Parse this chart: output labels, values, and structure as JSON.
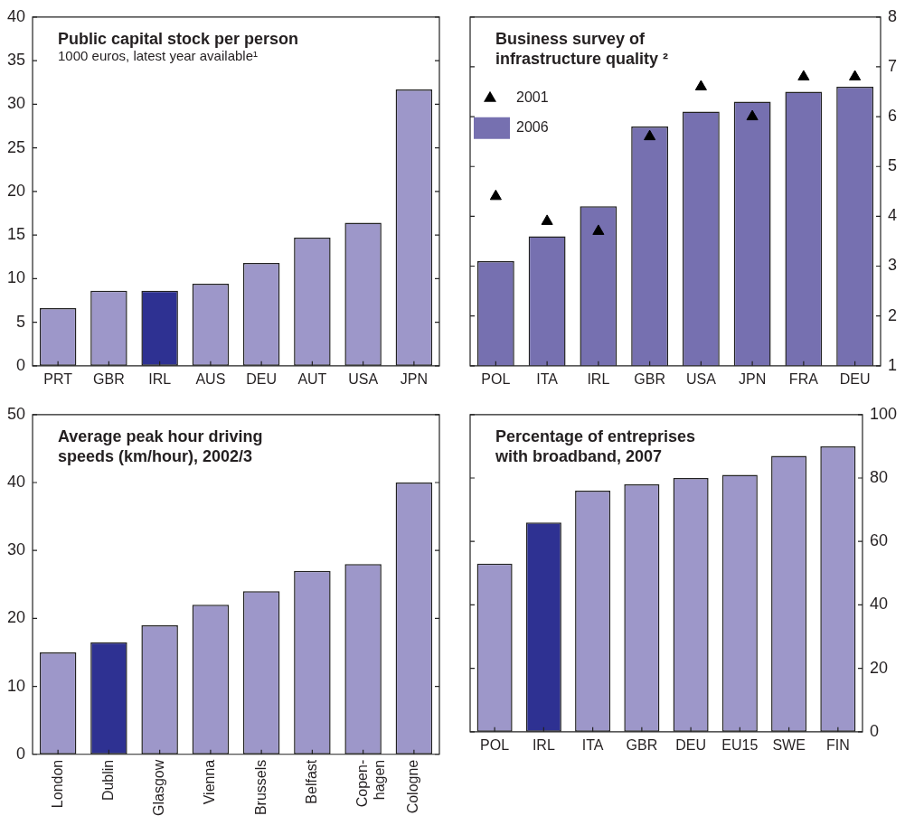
{
  "chart_data": [
    {
      "type": "bar",
      "title": "Public capital stock per person",
      "subtitle": "1000 euros, latest year available¹",
      "categories": [
        "PRT",
        "GBR",
        "IRL",
        "AUS",
        "DEU",
        "AUT",
        "USA",
        "JPN"
      ],
      "series": [
        {
          "colors": [
            "#9d97c9",
            "#9d97c9",
            "#2e3192",
            "#9d97c9",
            "#9d97c9",
            "#9d97c9",
            "#9d97c9",
            "#9d97c9"
          ],
          "values": [
            6.6,
            8.6,
            8.6,
            9.4,
            11.8,
            14.7,
            16.4,
            31.7
          ]
        }
      ],
      "ylim": [
        0,
        40
      ],
      "yticks": [
        0,
        5,
        10,
        15,
        20,
        25,
        30,
        35,
        40
      ],
      "grid": false,
      "legend": false
    },
    {
      "type": "bar",
      "title": "Business survey of\ninfrastructure quality ²",
      "categories": [
        "POL",
        "ITA",
        "IRL",
        "GBR",
        "USA",
        "JPN",
        "FRA",
        "DEU"
      ],
      "series": [
        {
          "name": "2001",
          "type": "scatter",
          "color": "#000000",
          "values": [
            4.4,
            3.9,
            3.7,
            5.6,
            6.6,
            6.0,
            6.8,
            6.8
          ]
        },
        {
          "name": "2006",
          "type": "bar",
          "color": "#7670b0",
          "values": [
            3.1,
            3.6,
            4.2,
            5.8,
            6.1,
            6.3,
            6.5,
            6.6
          ]
        }
      ],
      "marker": "triangle",
      "ylim": [
        1,
        8
      ],
      "yticks": [
        1,
        2,
        3,
        4,
        5,
        6,
        7,
        8
      ],
      "grid": false,
      "legend": "top left"
    },
    {
      "type": "bar",
      "title": "Average peak hour driving\nspeeds (km/hour), 2002/3",
      "categories": [
        "London",
        "Dublin",
        "Glasgow",
        "Vienna",
        "Brussels",
        "Belfast",
        "Copen-\nhagen",
        "Cologne"
      ],
      "series": [
        {
          "colors": [
            "#9d97c9",
            "#2e3192",
            "#9d97c9",
            "#9d97c9",
            "#9d97c9",
            "#9d97c9",
            "#9d97c9",
            "#9d97c9"
          ],
          "values": [
            15,
            16.5,
            19,
            22,
            24,
            27,
            28,
            40
          ]
        }
      ],
      "ylim": [
        0,
        50
      ],
      "yticks": [
        0,
        10,
        20,
        30,
        40,
        50
      ],
      "grid": false,
      "legend": false
    },
    {
      "type": "bar",
      "title": "Percentage of entreprises\nwith broadband, 2007",
      "categories": [
        "POL",
        "IRL",
        "ITA",
        "GBR",
        "DEU",
        "EU15",
        "SWE",
        "FIN"
      ],
      "series": [
        {
          "colors": [
            "#9d97c9",
            "#2e3192",
            "#9d97c9",
            "#9d97c9",
            "#9d97c9",
            "#9d97c9",
            "#9d97c9",
            "#9d97c9"
          ],
          "values": [
            53,
            66,
            76,
            78,
            80,
            81,
            87,
            90
          ]
        }
      ],
      "ylim": [
        0,
        100
      ],
      "yticks": [
        0,
        20,
        40,
        60,
        80,
        100
      ],
      "grid": false,
      "legend": false
    }
  ]
}
